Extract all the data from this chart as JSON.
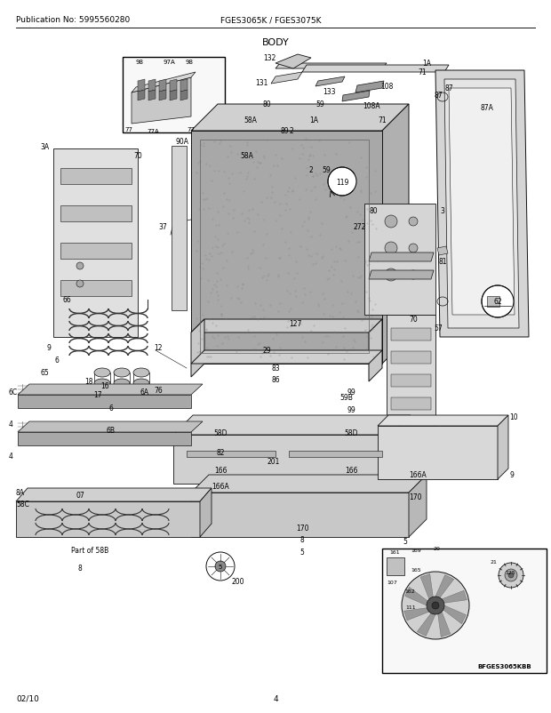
{
  "title": "BODY",
  "header_left": "Publication No: 5995560280",
  "header_center": "FGES3065K / FGES3075K",
  "footer_left": "02/10",
  "footer_center": "4",
  "bg_color": "#ffffff",
  "line_color": "#111111",
  "gray_dark": "#555555",
  "gray_mid": "#888888",
  "gray_light": "#bbbbbb",
  "gray_fill": "#d8d8d8",
  "dot_fill": "#999999"
}
